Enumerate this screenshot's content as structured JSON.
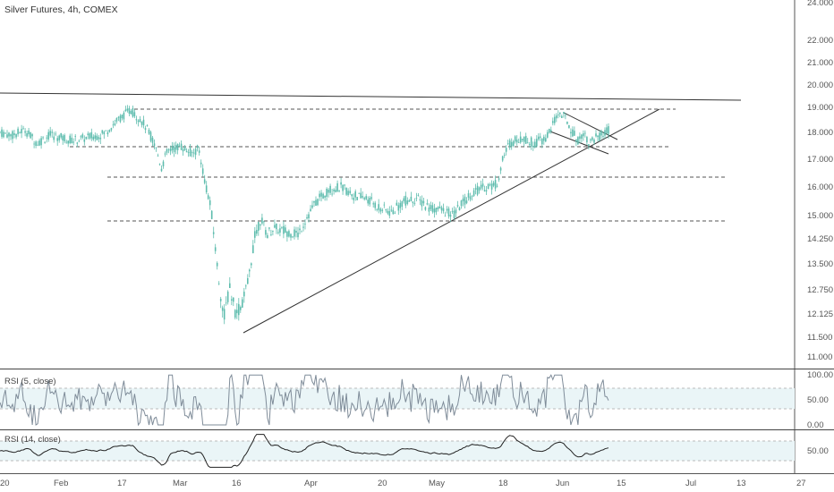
{
  "header": {
    "title": "Silver Futures, 4h, COMEX"
  },
  "colors": {
    "candle": "#5dbcad",
    "trendline": "#333333",
    "dashed": "#555555",
    "rsi_fast": "#7f8c99",
    "rsi_slow": "#222222",
    "rsi_band": "#eaf5f7",
    "axis": "#555555"
  },
  "chart_data": [
    {
      "type": "candlestick",
      "title": "Silver Futures, 4h, COMEX",
      "x_ticks": [
        "20",
        "Feb",
        "17",
        "Mar",
        "16",
        "Apr",
        "20",
        "May",
        "18",
        "Jun",
        "15",
        "Jul",
        "13",
        "27"
      ],
      "y_ticks": [
        "24.000",
        "22.000",
        "21.000",
        "20.000",
        "19.000",
        "18.000",
        "17.000",
        "16.000",
        "15.000",
        "14.250",
        "13.500",
        "12.750",
        "12.125",
        "11.500",
        "11.000"
      ],
      "price_path": [
        [
          0,
          18.0
        ],
        [
          2,
          17.9
        ],
        [
          4,
          18.1
        ],
        [
          6,
          17.6
        ],
        [
          8,
          17.9
        ],
        [
          10,
          17.8
        ],
        [
          12,
          17.7
        ],
        [
          14,
          17.8
        ],
        [
          16,
          17.9
        ],
        [
          17,
          18.0
        ],
        [
          19,
          18.5
        ],
        [
          21,
          18.9
        ],
        [
          23,
          18.4
        ],
        [
          24,
          18.0
        ],
        [
          25,
          17.5
        ],
        [
          26,
          16.7
        ],
        [
          27,
          17.3
        ],
        [
          29,
          17.5
        ],
        [
          31,
          17.2
        ],
        [
          32,
          17.4
        ],
        [
          33,
          16.2
        ],
        [
          34,
          15.2
        ],
        [
          35,
          13.4
        ],
        [
          36,
          12.0
        ],
        [
          37,
          12.8
        ],
        [
          38,
          12.1
        ],
        [
          39,
          12.4
        ],
        [
          40,
          13.0
        ],
        [
          41,
          14.3
        ],
        [
          42,
          14.9
        ],
        [
          43,
          14.4
        ],
        [
          44,
          14.6
        ],
        [
          46,
          14.5
        ],
        [
          48,
          14.4
        ],
        [
          49,
          14.8
        ],
        [
          51,
          15.5
        ],
        [
          53,
          15.9
        ],
        [
          55,
          16.0
        ],
        [
          57,
          15.7
        ],
        [
          59,
          15.6
        ],
        [
          61,
          15.3
        ],
        [
          63,
          15.1
        ],
        [
          65,
          15.5
        ],
        [
          67,
          15.6
        ],
        [
          69,
          15.3
        ],
        [
          71,
          15.2
        ],
        [
          73,
          15.0
        ],
        [
          74,
          15.3
        ],
        [
          76,
          15.8
        ],
        [
          78,
          16.0
        ],
        [
          80,
          16.1
        ],
        [
          81,
          17.0
        ],
        [
          82,
          17.6
        ],
        [
          84,
          17.8
        ],
        [
          86,
          17.6
        ],
        [
          88,
          17.8
        ],
        [
          89,
          18.3
        ],
        [
          90,
          18.8
        ],
        [
          91,
          18.6
        ],
        [
          92,
          18.1
        ],
        [
          93,
          17.7
        ],
        [
          94,
          18.0
        ],
        [
          95,
          17.6
        ],
        [
          96,
          17.8
        ],
        [
          97,
          17.9
        ],
        [
          98,
          18.1
        ]
      ]
    },
    {
      "type": "line",
      "pane_label": "RSI (5, close)",
      "y_ticks": [
        "100.00",
        "50.00",
        "0.00"
      ],
      "ylim": [
        0,
        100
      ]
    },
    {
      "type": "line",
      "pane_label": "RSI (14, close)",
      "y_ticks": [
        "50.00"
      ],
      "ylim": [
        0,
        100
      ]
    }
  ]
}
